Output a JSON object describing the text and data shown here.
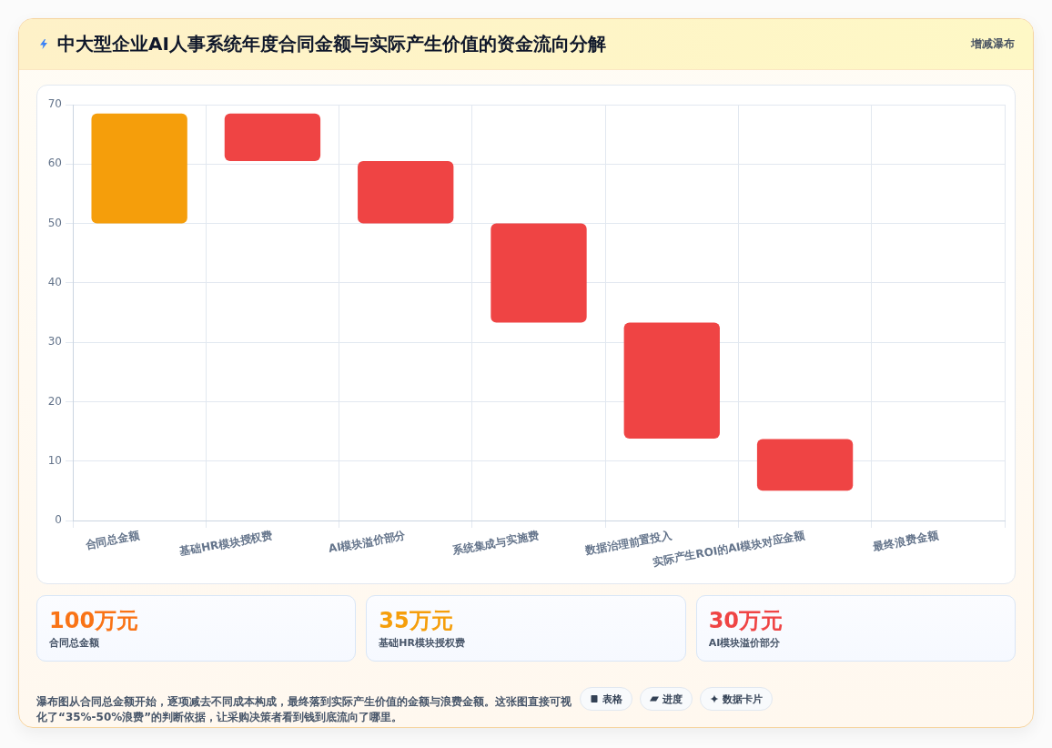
{
  "chart_data": [
    {
      "type": "bar",
      "title": "中大型企业AI人事系统年度合同金额与实际产生价值的资金流向分解",
      "subtitle": "增减瀑布",
      "categories": [
        "合同总金额",
        "基础HR模块授权费",
        "AI模块溢价部分",
        "系统集成与实施费",
        "数据治理前置投入",
        "实际产生ROI的AI模块对应金额",
        "最终浪费金额"
      ],
      "values": [
        18.5,
        8,
        10.5,
        16.7,
        19.5,
        8.7,
        null
      ],
      "base": [
        50,
        60.5,
        50,
        33.3,
        13.8,
        5,
        null
      ],
      "colors": [
        "#f59e0b",
        "#ef4444",
        "#ef4444",
        "#ef4444",
        "#ef4444",
        "#ef4444",
        null
      ],
      "ylim": [
        0,
        70
      ],
      "yticks": [
        0,
        10,
        20,
        30,
        40,
        50,
        60,
        70
      ],
      "grid": true,
      "annotations": [
        "瀑布图从合同总金额开始，逐项减去不同成本构成，最终落到实际产生价值的金额与浪费金额。这张图直接可视化了“35%-50%浪费”的判断依据，让采购决策者看到钱到底流向了哪里。",
        "表格",
        "进度",
        "数据卡片"
      ]
    },
    {
      "type": "other",
      "categories": [
        "合同总金额",
        "基础HR模块授权费",
        "AI模块溢价部分"
      ],
      "value_labels": [
        "100万元",
        "35万元",
        "30万元"
      ]
    }
  ]
}
